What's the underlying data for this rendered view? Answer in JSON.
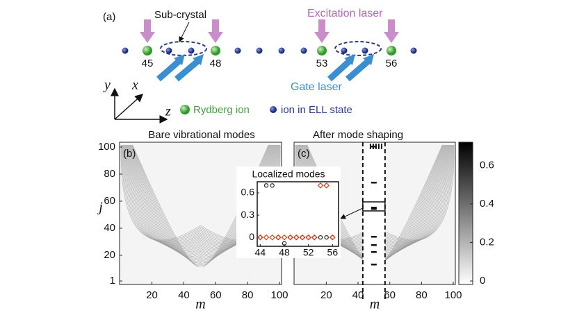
{
  "panel_a": {
    "label": "(a)",
    "sub_crystal": "Sub-crystal",
    "excitation": "Excitation laser",
    "gate": "Gate laser",
    "ion_labels": [
      "45",
      "48",
      "53",
      "56"
    ],
    "axes": [
      "y",
      "x",
      "z"
    ],
    "legend": [
      "Rydberg ion",
      "ion in ELL state"
    ]
  },
  "panel_b": {
    "type": "heatmap",
    "title": "Bare vibrational modes",
    "label": "(b)",
    "xlabel": "m",
    "ylabel": "j",
    "xlim": [
      1,
      100
    ],
    "ylim": [
      1,
      100
    ],
    "xticks": [
      20,
      40,
      60,
      80,
      100
    ],
    "yticks": [
      1,
      20,
      40,
      60,
      80,
      100
    ]
  },
  "panel_c": {
    "type": "heatmap",
    "title": "After mode shaping",
    "label": "(c)",
    "xlabel": "m",
    "xlim": [
      1,
      100
    ],
    "xticks": [
      20,
      40,
      60,
      80,
      100
    ],
    "dashed": [
      43,
      57
    ]
  },
  "colorbar": {
    "clim": [
      0,
      0.72
    ],
    "ticks": [
      0,
      0.2,
      0.4,
      0.6
    ]
  },
  "inset": {
    "type": "scatter",
    "title": "Localized modes",
    "xlim": [
      43.5,
      57
    ],
    "ylim": [
      -0.12,
      0.75
    ],
    "xticks": [
      44,
      48,
      52,
      56
    ],
    "yticks": [
      0,
      0.3,
      0.6
    ],
    "x": [
      44,
      45,
      46,
      47,
      48,
      49,
      50,
      51,
      52,
      53,
      54,
      55,
      56
    ],
    "series": [
      {
        "color": "#222222",
        "values": [
          0,
          0.7,
          0.7,
          0,
          -0.08,
          0,
          0,
          0,
          0,
          0,
          0,
          0,
          0
        ]
      },
      {
        "color": "#e0401a",
        "values": [
          0,
          0,
          0,
          0,
          0,
          0,
          0,
          0,
          0,
          0,
          0.7,
          0.7,
          0
        ]
      }
    ]
  }
}
